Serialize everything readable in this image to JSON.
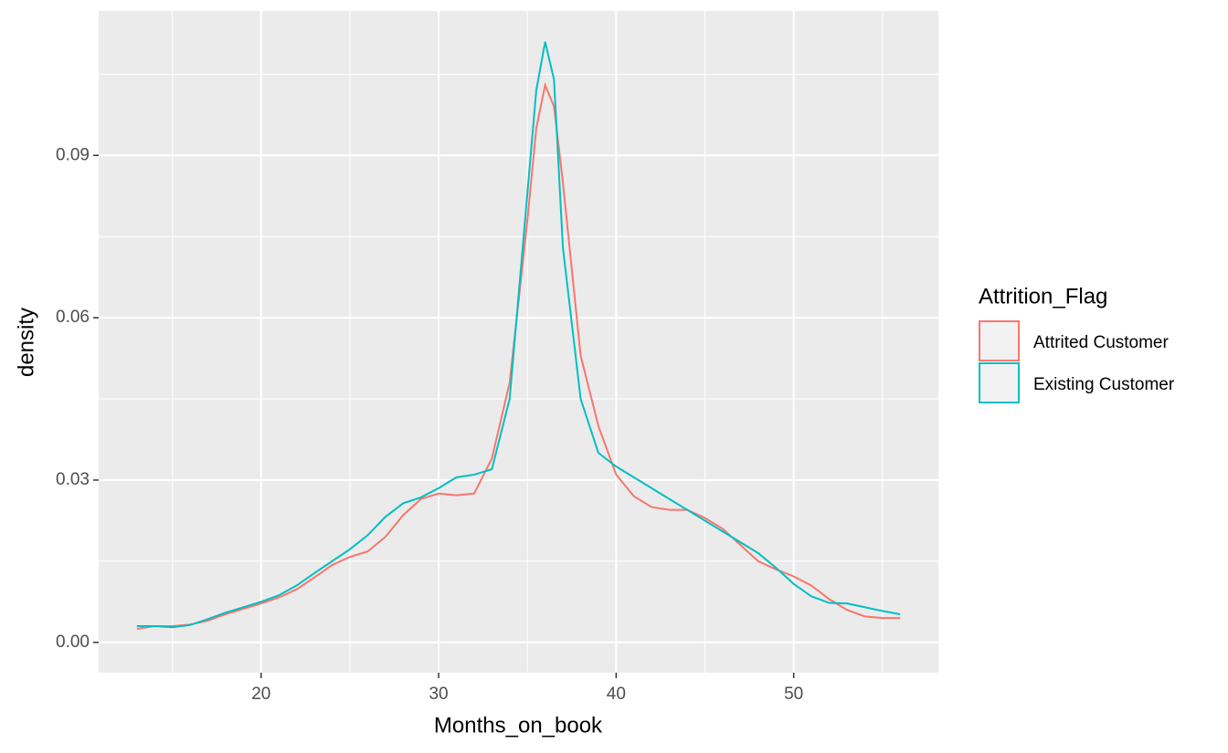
{
  "chart_data": {
    "type": "line",
    "x_label": "Months_on_book",
    "y_label": "density",
    "legend_title": "Attrition_Flag",
    "legend_position": "right",
    "x": [
      13,
      14,
      15,
      16,
      17,
      18,
      19,
      20,
      21,
      22,
      23,
      24,
      25,
      26,
      27,
      28,
      29,
      30,
      31,
      32,
      33,
      34,
      35,
      35.5,
      36,
      36.5,
      37,
      38,
      39,
      40,
      41,
      42,
      43,
      44,
      45,
      46,
      47,
      48,
      49,
      50,
      51,
      52,
      53,
      54,
      55,
      56
    ],
    "series": [
      {
        "name": "Attrited Customer",
        "color": "#f8766d",
        "values": [
          0.0025,
          0.003,
          0.003,
          0.0033,
          0.004,
          0.0052,
          0.0062,
          0.0072,
          0.0083,
          0.0098,
          0.012,
          0.0143,
          0.0158,
          0.0168,
          0.0195,
          0.0235,
          0.0265,
          0.0275,
          0.0272,
          0.0275,
          0.034,
          0.048,
          0.078,
          0.095,
          0.103,
          0.099,
          0.085,
          0.053,
          0.04,
          0.031,
          0.027,
          0.025,
          0.0245,
          0.0245,
          0.023,
          0.021,
          0.018,
          0.015,
          0.0135,
          0.0122,
          0.0105,
          0.008,
          0.006,
          0.0048,
          0.0045,
          0.0045
        ]
      },
      {
        "name": "Existing Customer",
        "color": "#00bfc4",
        "values": [
          0.003,
          0.003,
          0.0028,
          0.0032,
          0.0043,
          0.0055,
          0.0065,
          0.0075,
          0.0087,
          0.0105,
          0.0128,
          0.015,
          0.0172,
          0.0198,
          0.0232,
          0.0257,
          0.0268,
          0.0285,
          0.0305,
          0.031,
          0.032,
          0.045,
          0.083,
          0.102,
          0.111,
          0.104,
          0.073,
          0.045,
          0.035,
          0.0325,
          0.0305,
          0.0285,
          0.0265,
          0.0245,
          0.0225,
          0.0205,
          0.0185,
          0.0165,
          0.0138,
          0.0108,
          0.0085,
          0.0073,
          0.0072,
          0.0065,
          0.0058,
          0.0052
        ]
      }
    ],
    "xlim": [
      10.85,
      58.15
    ],
    "xticks": [
      20,
      30,
      40,
      50
    ],
    "xminorticks": [
      15,
      25,
      35,
      45,
      55
    ],
    "ylim": [
      -0.0056,
      0.1167
    ],
    "yticks": [
      {
        "value": 0,
        "label": "0.00"
      },
      0.03,
      0.06,
      0.09
    ],
    "yminorticks": [
      0.015,
      0.045,
      0.075,
      0.105
    ],
    "grid": true
  }
}
